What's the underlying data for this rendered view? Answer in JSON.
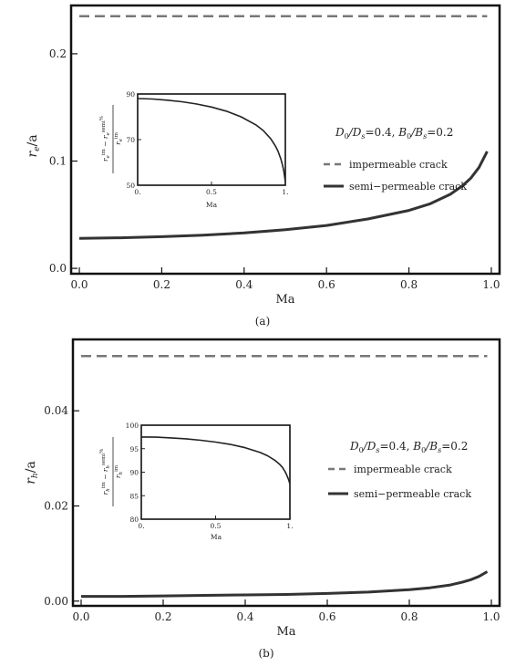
{
  "chart_data": [
    {
      "type": "line",
      "panel_label": "(a)",
      "xlabel": "Ma",
      "ylabel": "r_e/a",
      "ylabel_main": "r",
      "ylabel_sub": "e",
      "ylabel_tail": "/a",
      "xlim": [
        -0.02,
        1.02
      ],
      "ylim": [
        -0.005,
        0.245
      ],
      "xticks": [
        0.0,
        0.2,
        0.4,
        0.6,
        0.8,
        1.0
      ],
      "xtick_labels": [
        "0.0",
        "0.2",
        "0.4",
        "0.6",
        "0.8",
        "1.0"
      ],
      "yticks": [
        0.0,
        0.1,
        0.2
      ],
      "ytick_labels": [
        "0.0",
        "0.1",
        "0.2"
      ],
      "grid": false,
      "legend_position": "right-middle",
      "annotation": "D0/Ds=0.4, B0/Bs=0.2",
      "annotation_parts": {
        "d": "D",
        "d0": "0",
        "ds": "/D",
        "dss": "s",
        "deq": "=0.4, ",
        "b": "B",
        "b0": "0",
        "bs": "/B",
        "bss": "s",
        "beq": "=0.2"
      },
      "series": [
        {
          "name": "impermeable crack",
          "style": "dashed",
          "color": "#777777",
          "x": [
            0.0,
            0.99
          ],
          "y": [
            0.235,
            0.235
          ]
        },
        {
          "name": "semi−permeable crack",
          "style": "solid",
          "color": "#333333",
          "x": [
            0.0,
            0.1,
            0.2,
            0.3,
            0.4,
            0.5,
            0.6,
            0.7,
            0.8,
            0.85,
            0.9,
            0.93,
            0.95,
            0.97,
            0.99
          ],
          "y": [
            0.028,
            0.0285,
            0.0295,
            0.031,
            0.033,
            0.036,
            0.04,
            0.046,
            0.054,
            0.06,
            0.069,
            0.077,
            0.084,
            0.094,
            0.109
          ]
        }
      ],
      "inset": {
        "xlim": [
          0,
          1
        ],
        "ylim": [
          50,
          90
        ],
        "xticks": [
          0,
          0.5,
          1
        ],
        "xtick_labels": [
          "0.",
          "0.5",
          "1."
        ],
        "yticks": [
          50,
          70,
          90
        ],
        "ytick_labels": [
          "50",
          "70",
          "90"
        ],
        "xlabel": "Ma",
        "ylabel_parts": {
          "num_a": "r",
          "num_a_sub": "e",
          "num_a_sup": "im",
          "minus": " − ",
          "num_b": "r",
          "num_b_sub": "e",
          "num_b_sup": "semi",
          "den": "r",
          "den_sub": "e",
          "den_sup": "im",
          "pct": "%"
        },
        "x": [
          0,
          0.1,
          0.2,
          0.3,
          0.4,
          0.5,
          0.6,
          0.7,
          0.8,
          0.85,
          0.9,
          0.93,
          0.95,
          0.97,
          0.98,
          0.99,
          1.0
        ],
        "y": [
          88.0,
          87.8,
          87.3,
          86.6,
          85.6,
          84.3,
          82.5,
          80.0,
          76.5,
          74.0,
          70.5,
          67.5,
          65.0,
          61.5,
          59.0,
          56.0,
          51.5
        ]
      }
    },
    {
      "type": "line",
      "panel_label": "(b)",
      "xlabel": "Ma",
      "ylabel": "r_h/a",
      "ylabel_main": "r",
      "ylabel_sub": "h",
      "ylabel_tail": "/a",
      "xlim": [
        -0.02,
        1.02
      ],
      "ylim": [
        -0.001,
        0.055
      ],
      "xticks": [
        0.0,
        0.2,
        0.4,
        0.6,
        0.8,
        1.0
      ],
      "xtick_labels": [
        "0.0",
        "0.2",
        "0.4",
        "0.6",
        "0.8",
        "1.0"
      ],
      "yticks": [
        0.0,
        0.02,
        0.04
      ],
      "ytick_labels": [
        "0.00",
        "0.02",
        "0.04"
      ],
      "grid": false,
      "legend_position": "right-middle",
      "annotation": "D0/Ds=0.4, B0/Bs=0.2",
      "annotation_parts": {
        "d": "D",
        "d0": "0",
        "ds": "/D",
        "dss": "s",
        "deq": "=0.4, ",
        "b": "B",
        "b0": "0",
        "bs": "/B",
        "bss": "s",
        "beq": "=0.2"
      },
      "series": [
        {
          "name": "impermeable crack",
          "style": "dashed",
          "color": "#777777",
          "x": [
            0.0,
            0.99
          ],
          "y": [
            0.0515,
            0.0515
          ]
        },
        {
          "name": "semi−permeable crack",
          "style": "solid",
          "color": "#333333",
          "x": [
            0.0,
            0.1,
            0.2,
            0.3,
            0.4,
            0.5,
            0.6,
            0.7,
            0.8,
            0.85,
            0.9,
            0.93,
            0.95,
            0.97,
            0.99
          ],
          "y": [
            0.001,
            0.001,
            0.0011,
            0.0012,
            0.0013,
            0.0014,
            0.0016,
            0.0019,
            0.0024,
            0.0028,
            0.0034,
            0.004,
            0.0045,
            0.0052,
            0.0062
          ]
        }
      ],
      "inset": {
        "xlim": [
          0,
          1
        ],
        "ylim": [
          80,
          100
        ],
        "xticks": [
          0,
          0.5,
          1
        ],
        "xtick_labels": [
          "0.",
          "0.5",
          "1."
        ],
        "yticks": [
          80,
          85,
          90,
          95,
          100
        ],
        "ytick_labels": [
          "80",
          "85",
          "90",
          "95",
          "100"
        ],
        "xlabel": "Ma",
        "ylabel_parts": {
          "num_a": "r",
          "num_a_sub": "h",
          "num_a_sup": "im",
          "minus": " − ",
          "num_b": "r",
          "num_b_sub": "h",
          "num_b_sup": "semi",
          "den": "r",
          "den_sub": "h",
          "den_sup": "im",
          "pct": "%"
        },
        "x": [
          0,
          0.1,
          0.2,
          0.3,
          0.4,
          0.5,
          0.6,
          0.7,
          0.8,
          0.85,
          0.9,
          0.93,
          0.95,
          0.97,
          0.98,
          0.99,
          1.0
        ],
        "y": [
          97.5,
          97.45,
          97.3,
          97.1,
          96.8,
          96.4,
          95.9,
          95.2,
          94.2,
          93.5,
          92.5,
          91.7,
          91.0,
          90.0,
          89.3,
          88.5,
          87.5
        ]
      }
    }
  ]
}
